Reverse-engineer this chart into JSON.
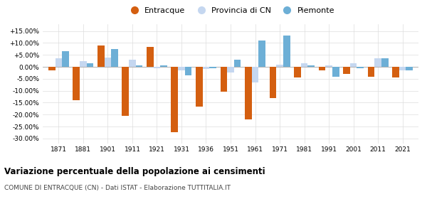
{
  "years": [
    1871,
    1881,
    1901,
    1911,
    1921,
    1931,
    1936,
    1951,
    1961,
    1971,
    1981,
    1991,
    2001,
    2011,
    2021
  ],
  "entracque": [
    -1.5,
    -14.0,
    9.0,
    -20.5,
    8.5,
    -27.5,
    -16.5,
    -10.5,
    -22.0,
    -13.0,
    -4.5,
    -1.5,
    -3.0,
    -4.0,
    -4.5
  ],
  "provincia_cn": [
    3.5,
    2.5,
    4.0,
    3.0,
    -0.5,
    -1.5,
    -1.0,
    -2.5,
    -6.5,
    1.0,
    1.5,
    0.5,
    1.5,
    3.5,
    -1.5
  ],
  "piemonte": [
    6.5,
    1.5,
    7.5,
    0.5,
    0.5,
    -3.5,
    -0.5,
    3.0,
    11.0,
    13.0,
    0.5,
    -4.0,
    -0.5,
    3.5,
    -1.5
  ],
  "entracque_color": "#d45f10",
  "provincia_color": "#c5d7f0",
  "piemonte_color": "#6dafd6",
  "title": "Variazione percentuale della popolazione ai censimenti",
  "subtitle": "COMUNE DI ENTRACQUE (CN) - Dati ISTAT - Elaborazione TUTTITALIA.IT",
  "ylim": [
    -32,
    18
  ],
  "yticks": [
    -30,
    -25,
    -20,
    -15,
    -10,
    -5,
    0,
    5,
    10,
    15
  ],
  "ytick_labels": [
    "-30.00%",
    "-25.00%",
    "-20.00%",
    "-15.00%",
    "-10.00%",
    "-5.00%",
    "0.00%",
    "+5.00%",
    "+10.00%",
    "+15.00%"
  ],
  "bg_color": "#ffffff",
  "grid_color": "#dddddd",
  "legend_labels": [
    "Entracque",
    "Provincia di CN",
    "Piemonte"
  ],
  "bar_width": 0.28
}
